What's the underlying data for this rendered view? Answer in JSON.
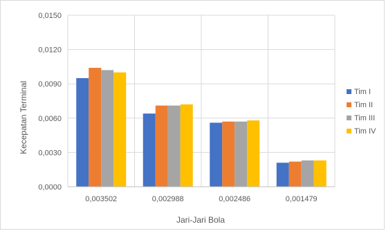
{
  "chart_data": {
    "type": "bar",
    "title": "",
    "xlabel": "Jari-Jari Bola",
    "ylabel": "Kecepatan Terminal",
    "categories": [
      "0,003502",
      "0,002988",
      "0,002486",
      "0,001479"
    ],
    "ylim": [
      0,
      0.015
    ],
    "yticks": [
      0,
      0.003,
      0.006,
      0.009,
      0.012,
      0.015
    ],
    "ytick_labels": [
      "0,0000",
      "0,0030",
      "0,0060",
      "0,0090",
      "0,0120",
      "0,0150"
    ],
    "grid": true,
    "legend_position": "right",
    "series": [
      {
        "name": "Tim I",
        "color": "#4472C4",
        "values": [
          0.0095,
          0.0064,
          0.0056,
          0.0021
        ]
      },
      {
        "name": "Tim II",
        "color": "#ED7D31",
        "values": [
          0.0104,
          0.0071,
          0.0057,
          0.0022
        ]
      },
      {
        "name": "Tim III",
        "color": "#A5A5A5",
        "values": [
          0.0102,
          0.0071,
          0.0057,
          0.0023
        ]
      },
      {
        "name": "Tim IV",
        "color": "#FFC000",
        "values": [
          0.01,
          0.0072,
          0.0058,
          0.0023
        ]
      }
    ]
  }
}
